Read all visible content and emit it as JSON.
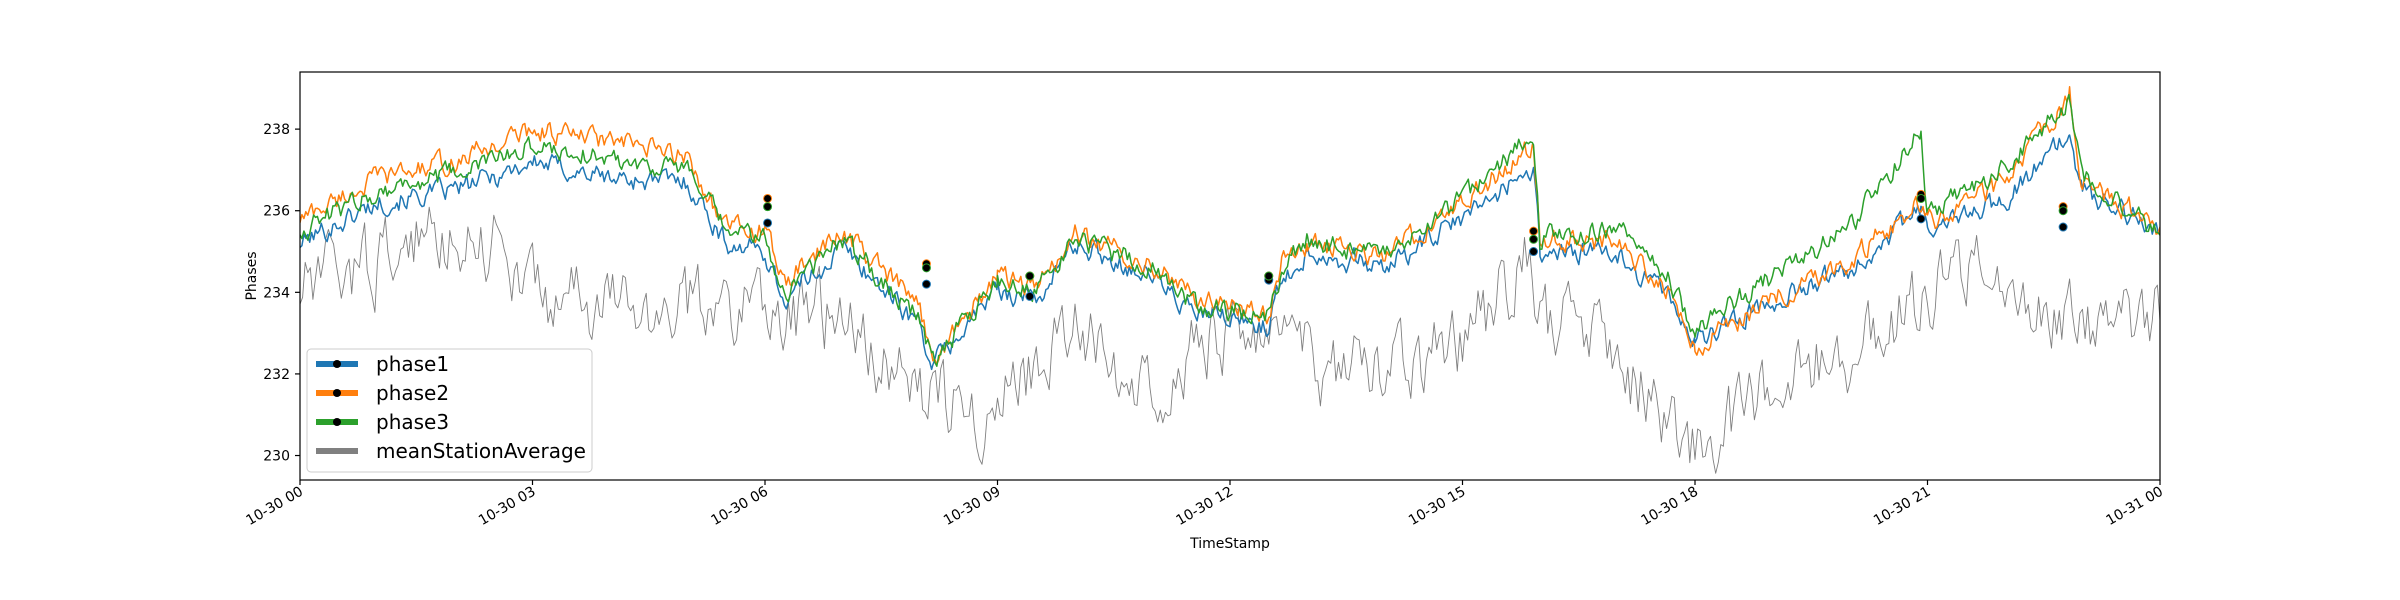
{
  "chart_data": {
    "type": "line",
    "title": "",
    "xlabel": "TimeStamp",
    "ylabel": "Phases",
    "x_ticks": [
      "10-30 00",
      "10-30 03",
      "10-30 06",
      "10-30 09",
      "10-30 12",
      "10-30 15",
      "10-30 18",
      "10-30 21",
      "10-31 00"
    ],
    "y_ticks": [
      230,
      232,
      234,
      236,
      238
    ],
    "xlim": [
      "10-30 00:00",
      "10-31 00:00"
    ],
    "ylim": [
      229.4,
      239.4
    ],
    "grid": false,
    "legend_position": "lower-left",
    "series": [
      {
        "name": "phase1",
        "color": "#1f77b4",
        "marker": "black dot",
        "x": [
          "10-30 00:00",
          "10-30 01:00",
          "10-30 02:00",
          "10-30 03:00",
          "10-30 04:00",
          "10-30 05:00",
          "10-30 05:30",
          "10-30 06:00",
          "10-30 06:15",
          "10-30 07:00",
          "10-30 08:00",
          "10-30 08:10",
          "10-30 09:00",
          "10-30 09:30",
          "10-30 10:00",
          "10-30 11:00",
          "10-30 11:30",
          "10-30 12:30",
          "10-30 12:40",
          "10-30 13:00",
          "10-30 14:00",
          "10-30 15:00",
          "10-30 15:55",
          "10-30 16:00",
          "10-30 17:00",
          "10-30 17:40",
          "10-30 18:00",
          "10-30 19:00",
          "10-30 20:00",
          "10-30 20:55",
          "10-30 21:00",
          "10-30 22:00",
          "10-30 22:50",
          "10-30 23:00",
          "10-31 00:00"
        ],
        "values": [
          235.2,
          236.2,
          236.5,
          237.2,
          236.8,
          236.7,
          235.2,
          235.0,
          233.8,
          235.1,
          233.2,
          232.2,
          234.1,
          233.8,
          235.2,
          234.4,
          233.5,
          233.2,
          234.3,
          235.0,
          234.6,
          235.8,
          237.1,
          235.0,
          234.9,
          233.9,
          232.8,
          233.8,
          234.6,
          236.0,
          235.5,
          236.3,
          237.8,
          236.5,
          235.5
        ],
        "marker_points": [
          {
            "x": "10-30 06:02",
            "y": 235.7
          },
          {
            "x": "10-30 08:05",
            "y": 234.2
          },
          {
            "x": "10-30 09:25",
            "y": 233.9
          },
          {
            "x": "10-30 12:30",
            "y": 234.3
          },
          {
            "x": "10-30 15:55",
            "y": 235.0
          },
          {
            "x": "10-30 20:55",
            "y": 235.8
          },
          {
            "x": "10-30 22:45",
            "y": 235.6
          }
        ]
      },
      {
        "name": "phase2",
        "color": "#ff7f0e",
        "marker": "black dot",
        "x": [
          "10-30 00:00",
          "10-30 01:00",
          "10-30 02:00",
          "10-30 03:00",
          "10-30 04:00",
          "10-30 05:00",
          "10-30 05:30",
          "10-30 06:00",
          "10-30 06:15",
          "10-30 07:00",
          "10-30 08:00",
          "10-30 08:10",
          "10-30 09:00",
          "10-30 09:30",
          "10-30 10:00",
          "10-30 11:00",
          "10-30 11:30",
          "10-30 12:30",
          "10-30 12:40",
          "10-30 13:00",
          "10-30 14:00",
          "10-30 15:00",
          "10-30 15:55",
          "10-30 16:00",
          "10-30 17:00",
          "10-30 17:40",
          "10-30 18:00",
          "10-30 19:00",
          "10-30 20:00",
          "10-30 20:55",
          "10-30 21:00",
          "10-30 22:00",
          "10-30 22:50",
          "10-30 23:00",
          "10-31 00:00"
        ],
        "values": [
          235.8,
          236.8,
          237.2,
          238.0,
          237.7,
          237.3,
          235.6,
          235.5,
          234.2,
          235.5,
          233.6,
          232.4,
          234.4,
          234.1,
          235.4,
          234.7,
          233.9,
          233.5,
          234.7,
          235.2,
          234.9,
          236.2,
          237.6,
          235.4,
          235.2,
          234.1,
          232.6,
          233.9,
          234.8,
          236.2,
          235.7,
          236.7,
          238.8,
          236.7,
          235.6
        ],
        "marker_points": [
          {
            "x": "10-30 06:02",
            "y": 236.3
          },
          {
            "x": "10-30 08:05",
            "y": 234.7
          },
          {
            "x": "10-30 09:25",
            "y": 234.4
          },
          {
            "x": "10-30 12:30",
            "y": 234.4
          },
          {
            "x": "10-30 15:55",
            "y": 235.5
          },
          {
            "x": "10-30 20:55",
            "y": 236.4
          },
          {
            "x": "10-30 22:45",
            "y": 236.1
          }
        ]
      },
      {
        "name": "phase3",
        "color": "#2ca02c",
        "marker": "black dot",
        "x": [
          "10-30 00:00",
          "10-30 01:00",
          "10-30 02:00",
          "10-30 03:00",
          "10-30 04:00",
          "10-30 05:00",
          "10-30 05:30",
          "10-30 06:00",
          "10-30 06:15",
          "10-30 07:00",
          "10-30 08:00",
          "10-30 08:10",
          "10-30 09:00",
          "10-30 09:30",
          "10-30 10:00",
          "10-30 11:00",
          "10-30 11:30",
          "10-30 12:30",
          "10-30 12:40",
          "10-30 13:00",
          "10-30 14:00",
          "10-30 15:00",
          "10-30 15:55",
          "10-30 16:00",
          "10-30 17:00",
          "10-30 17:40",
          "10-30 18:00",
          "10-30 19:00",
          "10-30 20:00",
          "10-30 20:55",
          "10-30 21:00",
          "10-30 22:00",
          "10-30 22:50",
          "10-30 23:00",
          "10-31 00:00"
        ],
        "values": [
          235.5,
          236.5,
          236.9,
          237.6,
          237.3,
          237.0,
          235.5,
          235.3,
          234.0,
          235.3,
          233.4,
          232.3,
          234.3,
          234.0,
          235.3,
          234.6,
          233.7,
          233.4,
          234.5,
          235.3,
          234.8,
          236.3,
          237.9,
          235.3,
          235.6,
          234.3,
          233.1,
          234.4,
          235.6,
          238.0,
          236.0,
          237.0,
          238.7,
          236.9,
          235.4
        ],
        "marker_points": [
          {
            "x": "10-30 06:02",
            "y": 236.1
          },
          {
            "x": "10-30 08:05",
            "y": 234.6
          },
          {
            "x": "10-30 09:25",
            "y": 234.4
          },
          {
            "x": "10-30 12:30",
            "y": 234.4
          },
          {
            "x": "10-30 15:55",
            "y": 235.3
          },
          {
            "x": "10-30 20:55",
            "y": 236.3
          },
          {
            "x": "10-30 22:45",
            "y": 236.0
          }
        ]
      },
      {
        "name": "meanStationAverage",
        "color": "#808080",
        "marker": "none",
        "x": [
          "10-30 00:00",
          "10-30 01:00",
          "10-30 02:00",
          "10-30 02:30",
          "10-30 03:00",
          "10-30 04:00",
          "10-30 05:00",
          "10-30 06:00",
          "10-30 07:00",
          "10-30 08:00",
          "10-30 09:00",
          "10-30 10:00",
          "10-30 11:00",
          "10-30 12:00",
          "10-30 13:00",
          "10-30 14:00",
          "10-30 15:00",
          "10-30 15:50",
          "10-30 16:00",
          "10-30 17:00",
          "10-30 17:50",
          "10-30 18:00",
          "10-30 19:00",
          "10-30 20:00",
          "10-30 21:00",
          "10-30 22:00",
          "10-30 23:00",
          "10-31 00:00"
        ],
        "values": [
          234.0,
          234.8,
          235.6,
          235.3,
          234.0,
          233.6,
          233.6,
          233.8,
          233.2,
          231.6,
          231.2,
          233.0,
          232.0,
          233.1,
          232.3,
          231.8,
          232.8,
          234.8,
          233.3,
          232.5,
          230.0,
          230.3,
          231.5,
          232.6,
          234.0,
          234.5,
          233.2,
          233.3
        ]
      }
    ]
  }
}
